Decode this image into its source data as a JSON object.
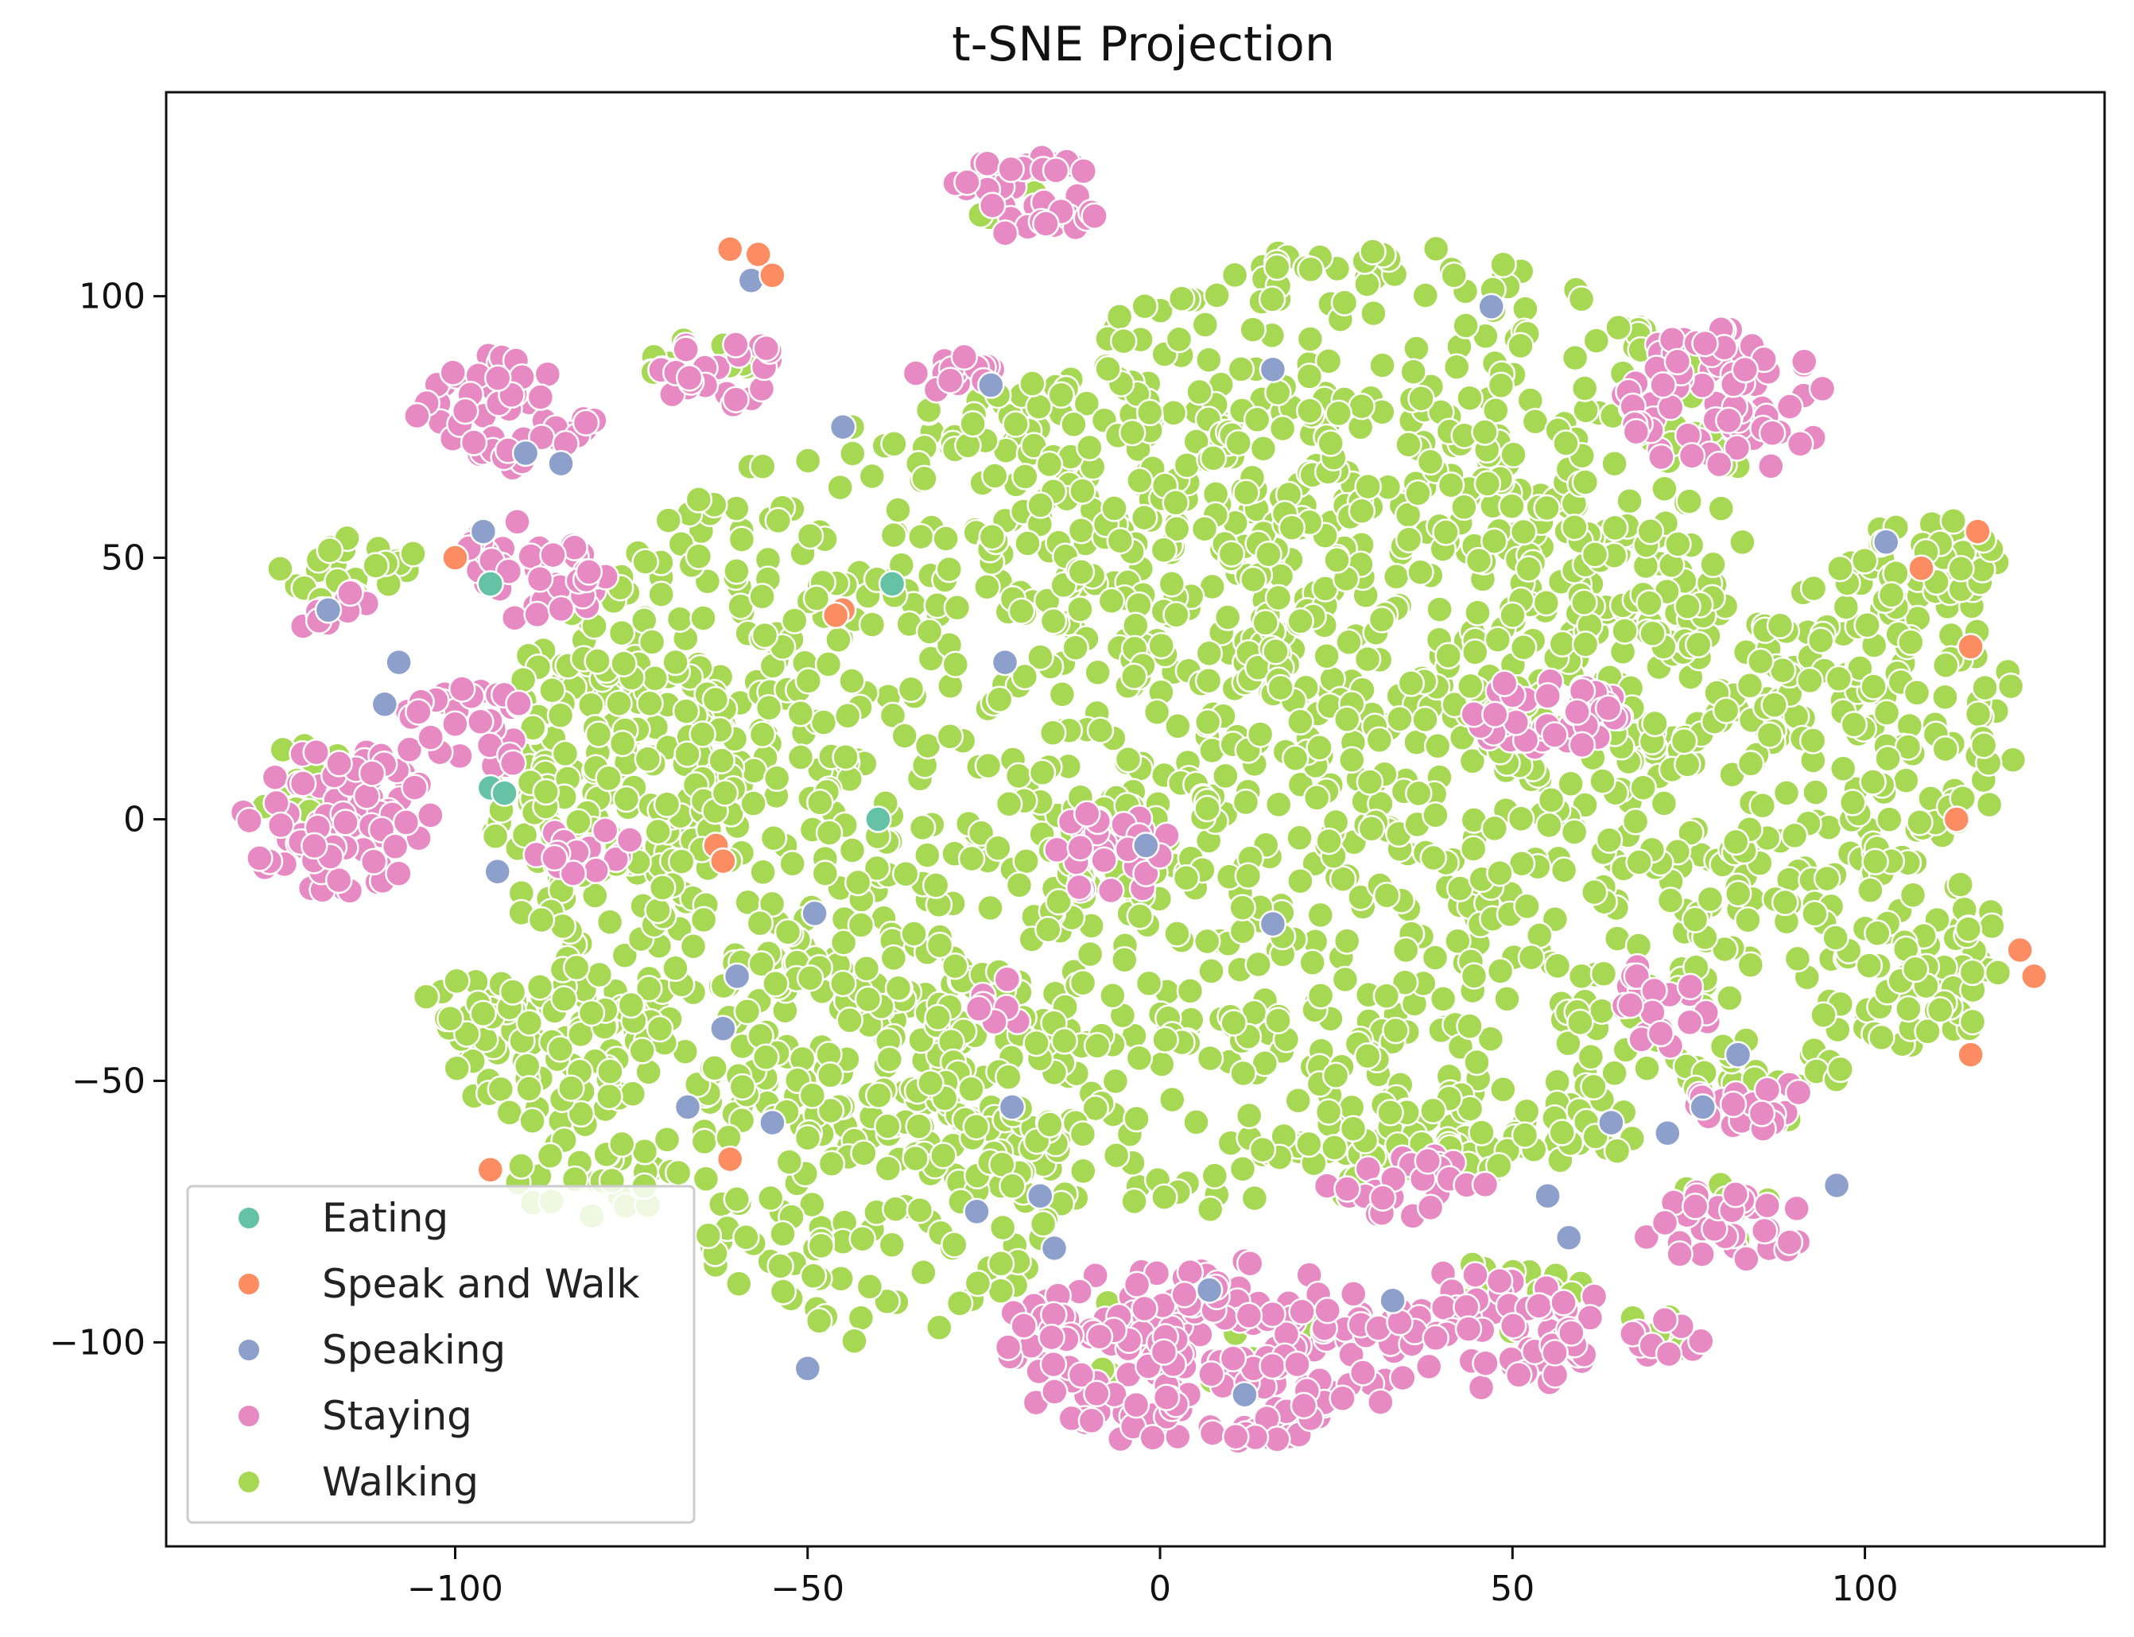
{
  "chart_data": {
    "type": "scatter",
    "title": "t-SNE Projection",
    "xlabel": "",
    "ylabel": "",
    "xlim": [
      -141,
      134
    ],
    "ylim": [
      -139,
      139
    ],
    "xticks": [
      -100,
      -50,
      0,
      50,
      100
    ],
    "yticks": [
      -100,
      -50,
      0,
      50,
      100
    ],
    "xtick_labels": [
      "−100",
      "−50",
      "0",
      "50",
      "100"
    ],
    "ytick_labels": [
      "−100",
      "−50",
      "0",
      "50",
      "100"
    ],
    "grid": false,
    "legend_position": "lower-left",
    "legend": [
      {
        "name": "Eating",
        "color": "#66c2a5"
      },
      {
        "name": "Speak and Walk",
        "color": "#fc8d62"
      },
      {
        "name": "Speaking",
        "color": "#8da0cb"
      },
      {
        "name": "Staying",
        "color": "#e78ac3"
      },
      {
        "name": "Walking",
        "color": "#a6d854"
      }
    ],
    "series": [
      {
        "name": "Eating",
        "color": "#66c2a5",
        "points": [
          [
            -95,
            45
          ],
          [
            -95,
            6
          ],
          [
            -93,
            5
          ],
          [
            -38,
            45
          ],
          [
            -40,
            0
          ]
        ]
      },
      {
        "name": "Speak and Walk",
        "color": "#fc8d62",
        "points": [
          [
            -61,
            109
          ],
          [
            -57,
            108
          ],
          [
            -55,
            104
          ],
          [
            -100,
            50
          ],
          [
            -45,
            40
          ],
          [
            -46,
            39
          ],
          [
            -61,
            -65
          ],
          [
            -95,
            -67
          ],
          [
            108,
            48
          ],
          [
            116,
            55
          ],
          [
            115,
            33
          ],
          [
            115,
            -45
          ],
          [
            122,
            -25
          ],
          [
            124,
            -30
          ],
          [
            113,
            0
          ],
          [
            -63,
            -5
          ],
          [
            -62,
            -8
          ]
        ]
      },
      {
        "name": "Speaking",
        "color": "#8da0cb",
        "points": [
          [
            -58,
            103
          ],
          [
            -90,
            70
          ],
          [
            -85,
            68
          ],
          [
            -110,
            22
          ],
          [
            -118,
            40
          ],
          [
            -94,
            -10
          ],
          [
            -45,
            40
          ],
          [
            -45,
            75
          ],
          [
            -55,
            -58
          ],
          [
            -50,
            -105
          ],
          [
            -26,
            -75
          ],
          [
            -21,
            -55
          ],
          [
            -17,
            -72
          ],
          [
            -15,
            -82
          ],
          [
            55,
            -72
          ],
          [
            58,
            -80
          ],
          [
            64,
            -58
          ],
          [
            72,
            -60
          ],
          [
            77,
            -55
          ],
          [
            103,
            53
          ],
          [
            -2,
            -5
          ],
          [
            16,
            -20
          ],
          [
            -22,
            30
          ],
          [
            47,
            98
          ],
          [
            -67,
            -55
          ],
          [
            -108,
            30
          ],
          [
            -96,
            55
          ],
          [
            -60,
            -30
          ],
          [
            -62,
            -40
          ],
          [
            -49,
            -18
          ],
          [
            7,
            -90
          ],
          [
            33,
            -92
          ],
          [
            12,
            -110
          ],
          [
            82,
            -45
          ],
          [
            96,
            -70
          ],
          [
            -24,
            83
          ],
          [
            16,
            86
          ]
        ]
      },
      {
        "name": "Staying",
        "color": "#e78ac3",
        "clusters": [
          {
            "cx": -19,
            "cy": 119,
            "rx": 11,
            "ry": 8,
            "n": 40
          },
          {
            "cx": -93,
            "cy": 78,
            "rx": 13,
            "ry": 11,
            "n": 55
          },
          {
            "cx": -88,
            "cy": 45,
            "rx": 10,
            "ry": 8,
            "n": 30
          },
          {
            "cx": -117,
            "cy": 0,
            "rx": 14,
            "ry": 14,
            "n": 85
          },
          {
            "cx": -98,
            "cy": 17,
            "rx": 10,
            "ry": 8,
            "n": 30
          },
          {
            "cx": -82,
            "cy": -5,
            "rx": 7,
            "ry": 6,
            "n": 15
          },
          {
            "cx": -62,
            "cy": 85,
            "rx": 9,
            "ry": 7,
            "n": 25
          },
          {
            "cx": -118,
            "cy": 40,
            "rx": 6,
            "ry": 4,
            "n": 10
          },
          {
            "cx": 80,
            "cy": 80,
            "rx": 15,
            "ry": 14,
            "n": 80
          },
          {
            "cx": 55,
            "cy": 20,
            "rx": 12,
            "ry": 7,
            "n": 40
          },
          {
            "cx": -7,
            "cy": -7,
            "rx": 9,
            "ry": 9,
            "n": 30
          },
          {
            "cx": -28,
            "cy": 85,
            "rx": 7,
            "ry": 5,
            "n": 15
          },
          {
            "cx": 6,
            "cy": -102,
            "rx": 30,
            "ry": 18,
            "n": 220
          },
          {
            "cx": 48,
            "cy": -97,
            "rx": 16,
            "ry": 12,
            "n": 70
          },
          {
            "cx": 35,
            "cy": -70,
            "rx": 12,
            "ry": 6,
            "n": 30
          },
          {
            "cx": 80,
            "cy": -78,
            "rx": 13,
            "ry": 7,
            "n": 35
          },
          {
            "cx": 85,
            "cy": -55,
            "rx": 10,
            "ry": 5,
            "n": 20
          },
          {
            "cx": 72,
            "cy": -35,
            "rx": 7,
            "ry": 9,
            "n": 20
          },
          {
            "cx": 72,
            "cy": -100,
            "rx": 6,
            "ry": 5,
            "n": 10
          },
          {
            "cx": -22,
            "cy": -35,
            "rx": 5,
            "ry": 5,
            "n": 10
          },
          {
            "cx": -92,
            "cy": 52,
            "rx": 9,
            "ry": 5,
            "n": 12
          }
        ]
      },
      {
        "name": "Walking",
        "color": "#a6d854",
        "clusters": [
          {
            "cx": 0,
            "cy": 5,
            "rx": 95,
            "ry": 80,
            "n": 1500
          },
          {
            "cx": 30,
            "cy": 60,
            "rx": 55,
            "ry": 50,
            "n": 400
          },
          {
            "cx": -40,
            "cy": -60,
            "rx": 30,
            "ry": 40,
            "n": 200
          },
          {
            "cx": 102,
            "cy": 20,
            "rx": 20,
            "ry": 30,
            "n": 150
          },
          {
            "cx": 105,
            "cy": -25,
            "rx": 15,
            "ry": 20,
            "n": 90
          },
          {
            "cx": -75,
            "cy": 10,
            "rx": 15,
            "ry": 25,
            "n": 120
          },
          {
            "cx": -85,
            "cy": -45,
            "rx": 15,
            "ry": 15,
            "n": 80
          },
          {
            "cx": -115,
            "cy": 48,
            "rx": 10,
            "ry": 7,
            "n": 25
          },
          {
            "cx": -80,
            "cy": -68,
            "rx": 12,
            "ry": 8,
            "n": 30
          },
          {
            "cx": -90,
            "cy": -35,
            "rx": 15,
            "ry": 8,
            "n": 30
          },
          {
            "cx": 108,
            "cy": 50,
            "rx": 12,
            "ry": 8,
            "n": 30
          },
          {
            "cx": -120,
            "cy": 5,
            "rx": 8,
            "ry": 10,
            "n": 20
          },
          {
            "cx": 45,
            "cy": -60,
            "rx": 25,
            "ry": 8,
            "n": 50
          },
          {
            "cx": 85,
            "cy": -50,
            "rx": 12,
            "ry": 8,
            "n": 25
          },
          {
            "cx": 80,
            "cy": -75,
            "rx": 8,
            "ry": 6,
            "n": 12
          },
          {
            "cx": 50,
            "cy": -90,
            "rx": 10,
            "ry": 8,
            "n": 15
          },
          {
            "cx": 70,
            "cy": -100,
            "rx": 6,
            "ry": 6,
            "n": 10
          },
          {
            "cx": 5,
            "cy": -100,
            "rx": 20,
            "ry": 10,
            "n": 15
          },
          {
            "cx": -65,
            "cy": 88,
            "rx": 10,
            "ry": 5,
            "n": 15
          },
          {
            "cx": -20,
            "cy": 118,
            "rx": 6,
            "ry": 6,
            "n": 6
          },
          {
            "cx": 65,
            "cy": 18,
            "rx": 8,
            "ry": 6,
            "n": 15
          }
        ]
      }
    ]
  }
}
